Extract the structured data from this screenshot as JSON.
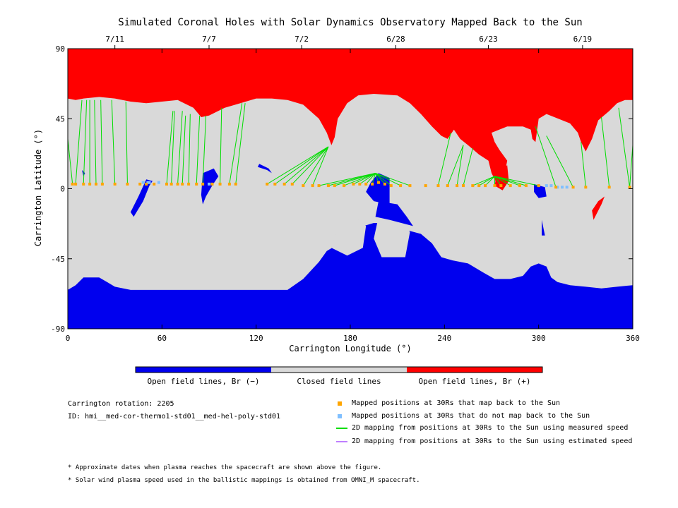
{
  "chart_data": {
    "type": "map",
    "title": "Simulated Coronal Holes with Solar Dynamics Observatory Mapped Back to the Sun",
    "xlabel": "Carrington Longitude (°)",
    "ylabel": "Carrington Latitude (°)",
    "xlim": [
      0,
      360
    ],
    "ylim": [
      -90,
      90
    ],
    "x_ticks": [
      "0",
      "60",
      "120",
      "180",
      "240",
      "300",
      "360"
    ],
    "y_ticks": [
      "90",
      "45",
      "0",
      "-45",
      "-90"
    ],
    "top_date_ticks": [
      {
        "lon": 30,
        "label": "7/11"
      },
      {
        "lon": 90,
        "label": "7/7"
      },
      {
        "lon": 149,
        "label": "7/2"
      },
      {
        "lon": 209,
        "label": "6/28"
      },
      {
        "lon": 268,
        "label": "6/23"
      },
      {
        "lon": 328,
        "label": "6/19"
      }
    ],
    "colors": {
      "closed": "#d9d9d9",
      "open_negative": "#0000ee",
      "open_positive": "#ff0000",
      "mapped_yes": "#ffa500",
      "mapped_no": "#7fbfff",
      "measured_speed_line": "#00dd00",
      "estimated_speed_line": "#bf7fff"
    },
    "north_hole_boundary": [
      [
        0,
        58
      ],
      [
        5,
        57
      ],
      [
        10,
        58
      ],
      [
        20,
        59
      ],
      [
        30,
        58
      ],
      [
        40,
        56
      ],
      [
        50,
        55
      ],
      [
        60,
        56
      ],
      [
        70,
        57
      ],
      [
        80,
        52
      ],
      [
        85,
        46
      ],
      [
        90,
        47
      ],
      [
        100,
        52
      ],
      [
        110,
        55
      ],
      [
        120,
        58
      ],
      [
        130,
        58
      ],
      [
        140,
        57
      ],
      [
        150,
        54
      ],
      [
        160,
        45
      ],
      [
        165,
        36
      ],
      [
        168,
        28
      ],
      [
        170,
        33
      ],
      [
        172,
        45
      ],
      [
        178,
        55
      ],
      [
        185,
        60
      ],
      [
        195,
        61
      ],
      [
        210,
        60
      ],
      [
        218,
        55
      ],
      [
        225,
        48
      ],
      [
        232,
        40
      ],
      [
        238,
        34
      ],
      [
        242,
        32
      ],
      [
        246,
        38
      ],
      [
        250,
        32
      ],
      [
        255,
        28
      ],
      [
        262,
        22
      ],
      [
        268,
        18
      ],
      [
        270,
        10
      ],
      [
        274,
        2
      ],
      [
        278,
        8
      ],
      [
        280,
        18
      ],
      [
        275,
        25
      ],
      [
        272,
        30
      ],
      [
        270,
        36
      ],
      [
        280,
        40
      ],
      [
        290,
        40
      ],
      [
        295,
        38
      ],
      [
        296,
        32
      ],
      [
        298,
        30
      ],
      [
        300,
        45
      ],
      [
        305,
        48
      ],
      [
        310,
        46
      ],
      [
        320,
        42
      ],
      [
        325,
        36
      ],
      [
        327,
        30
      ],
      [
        330,
        24
      ],
      [
        334,
        32
      ],
      [
        338,
        44
      ],
      [
        345,
        50
      ],
      [
        350,
        55
      ],
      [
        355,
        57
      ],
      [
        360,
        57
      ]
    ],
    "south_hole_boundary": [
      [
        0,
        -65
      ],
      [
        5,
        -62
      ],
      [
        10,
        -57
      ],
      [
        20,
        -57
      ],
      [
        25,
        -60
      ],
      [
        30,
        -63
      ],
      [
        40,
        -65
      ],
      [
        60,
        -65
      ],
      [
        100,
        -65
      ],
      [
        140,
        -65
      ],
      [
        150,
        -58
      ],
      [
        160,
        -47
      ],
      [
        165,
        -40
      ],
      [
        170,
        -37
      ],
      [
        178,
        -29
      ],
      [
        185,
        -25
      ],
      [
        195,
        -22
      ],
      [
        205,
        -22
      ],
      [
        210,
        -25
      ],
      [
        225,
        -29
      ],
      [
        232,
        -35
      ],
      [
        238,
        -44
      ],
      [
        245,
        -46
      ],
      [
        255,
        -48
      ],
      [
        265,
        -54
      ],
      [
        272,
        -58
      ],
      [
        282,
        -58
      ],
      [
        290,
        -56
      ],
      [
        295,
        -50
      ],
      [
        300,
        -48
      ],
      [
        305,
        -50
      ],
      [
        308,
        -57
      ],
      [
        312,
        -60
      ],
      [
        320,
        -62
      ],
      [
        330,
        -63
      ],
      [
        340,
        -64
      ],
      [
        350,
        -63
      ],
      [
        360,
        -62
      ]
    ],
    "south_inclusions": [
      [
        [
          171,
          -27
        ],
        [
          176,
          -18
        ],
        [
          184,
          -19
        ],
        [
          190,
          -24
        ],
        [
          188,
          -38
        ],
        [
          178,
          -43
        ],
        [
          168,
          -38
        ]
      ],
      [
        [
          195,
          -32
        ],
        [
          198,
          -18
        ],
        [
          206,
          -15
        ],
        [
          214,
          -18
        ],
        [
          218,
          -28
        ],
        [
          215,
          -44
        ],
        [
          200,
          -44
        ]
      ]
    ],
    "negative_polarity_islands": [
      [
        [
          198,
          10
        ],
        [
          205,
          7
        ],
        [
          205,
          -10
        ],
        [
          195,
          -8
        ],
        [
          190,
          -2
        ],
        [
          193,
          4
        ]
      ],
      [
        [
          198,
          -8
        ],
        [
          210,
          -10
        ],
        [
          216,
          -18
        ],
        [
          220,
          -24
        ],
        [
          205,
          -20
        ],
        [
          196,
          -18
        ]
      ],
      [
        [
          42,
          -18
        ],
        [
          48,
          -8
        ],
        [
          52,
          2
        ],
        [
          54,
          5
        ],
        [
          50,
          6
        ],
        [
          45,
          -5
        ],
        [
          40,
          -15
        ]
      ],
      [
        [
          86,
          10
        ],
        [
          93,
          13
        ],
        [
          96,
          8
        ],
        [
          92,
          2
        ],
        [
          88,
          -5
        ],
        [
          86,
          -10
        ],
        [
          85,
          -4
        ]
      ],
      [
        [
          121,
          14
        ],
        [
          127,
          12
        ],
        [
          130,
          10
        ],
        [
          128,
          13
        ],
        [
          122,
          16
        ]
      ],
      [
        [
          9,
          12
        ],
        [
          11,
          10
        ],
        [
          10,
          8
        ]
      ],
      [
        [
          297,
          3
        ],
        [
          304,
          1
        ],
        [
          305,
          -5
        ],
        [
          300,
          -6
        ],
        [
          297,
          -2
        ]
      ],
      [
        [
          302,
          -20
        ],
        [
          304,
          -30
        ],
        [
          302,
          -30
        ]
      ]
    ],
    "positive_polarity_islands": [
      [
        [
          275,
          13
        ],
        [
          280,
          15
        ],
        [
          281,
          5
        ],
        [
          277,
          -1
        ],
        [
          272,
          2
        ],
        [
          273,
          8
        ]
      ],
      [
        [
          335,
          -20
        ],
        [
          340,
          -10
        ],
        [
          342,
          -5
        ],
        [
          338,
          -8
        ],
        [
          334,
          -14
        ]
      ]
    ],
    "mapped_points": [
      [
        3,
        3
      ],
      [
        5,
        3
      ],
      [
        10,
        3
      ],
      [
        14,
        3
      ],
      [
        18,
        3
      ],
      [
        22,
        3
      ],
      [
        30,
        3
      ],
      [
        38,
        3
      ],
      [
        46,
        3
      ],
      [
        50,
        3
      ],
      [
        55,
        3
      ],
      [
        63,
        3
      ],
      [
        66,
        3
      ],
      [
        70,
        3
      ],
      [
        73,
        3
      ],
      [
        77,
        3
      ],
      [
        82,
        3
      ],
      [
        86,
        3
      ],
      [
        92,
        3
      ],
      [
        97,
        3
      ],
      [
        103,
        3
      ],
      [
        107,
        3
      ],
      [
        127,
        3
      ],
      [
        132,
        3
      ],
      [
        138,
        3
      ],
      [
        143,
        3
      ],
      [
        150,
        2
      ],
      [
        156,
        2
      ],
      [
        160,
        2
      ],
      [
        166,
        2
      ],
      [
        170,
        2
      ],
      [
        176,
        2
      ],
      [
        182,
        3
      ],
      [
        186,
        3
      ],
      [
        190,
        3
      ],
      [
        194,
        3
      ],
      [
        198,
        4
      ],
      [
        202,
        3
      ],
      [
        206,
        2
      ],
      [
        212,
        2
      ],
      [
        218,
        2
      ],
      [
        228,
        2
      ],
      [
        236,
        2
      ],
      [
        242,
        2
      ],
      [
        248,
        2
      ],
      [
        252,
        2
      ],
      [
        258,
        2
      ],
      [
        262,
        2
      ],
      [
        266,
        2
      ],
      [
        272,
        2
      ],
      [
        276,
        2
      ],
      [
        282,
        2
      ],
      [
        288,
        2
      ],
      [
        292,
        2
      ],
      [
        300,
        2
      ],
      [
        311,
        1
      ],
      [
        322,
        1
      ],
      [
        330,
        1
      ],
      [
        345,
        1
      ],
      [
        358,
        1
      ]
    ],
    "unmapped_points": [
      [
        48,
        4
      ],
      [
        51,
        4
      ],
      [
        52,
        4
      ],
      [
        58,
        4
      ],
      [
        90,
        3
      ],
      [
        300,
        2
      ],
      [
        305,
        2
      ],
      [
        308,
        2
      ],
      [
        312,
        1
      ],
      [
        315,
        1
      ],
      [
        318,
        1
      ]
    ],
    "measured_speed_lines": [
      [
        [
          3,
          3
        ],
        [
          0,
          32
        ]
      ],
      [
        [
          5,
          3
        ],
        [
          9,
          57
        ]
      ],
      [
        [
          10,
          3
        ],
        [
          12,
          57
        ]
      ],
      [
        [
          14,
          3
        ],
        [
          14,
          57
        ]
      ],
      [
        [
          18,
          3
        ],
        [
          17,
          57
        ]
      ],
      [
        [
          22,
          3
        ],
        [
          21,
          57
        ]
      ],
      [
        [
          30,
          3
        ],
        [
          28,
          57
        ]
      ],
      [
        [
          38,
          3
        ],
        [
          37,
          56
        ]
      ],
      [
        [
          63,
          3
        ],
        [
          67,
          50
        ]
      ],
      [
        [
          66,
          3
        ],
        [
          68,
          50
        ]
      ],
      [
        [
          70,
          3
        ],
        [
          73,
          50
        ]
      ],
      [
        [
          73,
          3
        ],
        [
          75,
          47
        ]
      ],
      [
        [
          77,
          3
        ],
        [
          78,
          48
        ]
      ],
      [
        [
          82,
          3
        ],
        [
          84,
          47
        ]
      ],
      [
        [
          86,
          3
        ],
        [
          88,
          47
        ]
      ],
      [
        [
          97,
          3
        ],
        [
          98,
          52
        ]
      ],
      [
        [
          103,
          3
        ],
        [
          111,
          55
        ]
      ],
      [
        [
          107,
          3
        ],
        [
          113,
          55
        ]
      ],
      [
        [
          127,
          3
        ],
        [
          166,
          27
        ]
      ],
      [
        [
          132,
          3
        ],
        [
          166,
          27
        ]
      ],
      [
        [
          138,
          3
        ],
        [
          166,
          27
        ]
      ],
      [
        [
          143,
          3
        ],
        [
          166,
          27
        ]
      ],
      [
        [
          150,
          2
        ],
        [
          166,
          27
        ]
      ],
      [
        [
          156,
          2
        ],
        [
          166,
          27
        ]
      ],
      [
        [
          160,
          2
        ],
        [
          196,
          10
        ]
      ],
      [
        [
          166,
          2
        ],
        [
          196,
          10
        ]
      ],
      [
        [
          170,
          2
        ],
        [
          196,
          10
        ]
      ],
      [
        [
          176,
          2
        ],
        [
          196,
          10
        ]
      ],
      [
        [
          182,
          3
        ],
        [
          196,
          10
        ]
      ],
      [
        [
          186,
          3
        ],
        [
          196,
          10
        ]
      ],
      [
        [
          190,
          3
        ],
        [
          196,
          10
        ]
      ],
      [
        [
          194,
          3
        ],
        [
          196,
          10
        ]
      ],
      [
        [
          198,
          4
        ],
        [
          196,
          10
        ]
      ],
      [
        [
          202,
          3
        ],
        [
          196,
          10
        ]
      ],
      [
        [
          206,
          2
        ],
        [
          196,
          10
        ]
      ],
      [
        [
          212,
          2
        ],
        [
          196,
          10
        ]
      ],
      [
        [
          218,
          2
        ],
        [
          196,
          10
        ]
      ],
      [
        [
          236,
          2
        ],
        [
          244,
          36
        ]
      ],
      [
        [
          242,
          2
        ],
        [
          252,
          28
        ]
      ],
      [
        [
          248,
          2
        ],
        [
          252,
          28
        ]
      ],
      [
        [
          252,
          2
        ],
        [
          258,
          26
        ]
      ],
      [
        [
          258,
          2
        ],
        [
          272,
          8
        ]
      ],
      [
        [
          262,
          2
        ],
        [
          272,
          8
        ]
      ],
      [
        [
          266,
          2
        ],
        [
          272,
          8
        ]
      ],
      [
        [
          272,
          2
        ],
        [
          272,
          8
        ]
      ],
      [
        [
          276,
          2
        ],
        [
          272,
          8
        ]
      ],
      [
        [
          282,
          2
        ],
        [
          272,
          8
        ]
      ],
      [
        [
          288,
          2
        ],
        [
          272,
          8
        ]
      ],
      [
        [
          292,
          2
        ],
        [
          272,
          8
        ]
      ],
      [
        [
          300,
          2
        ],
        [
          272,
          8
        ]
      ],
      [
        [
          311,
          1
        ],
        [
          298,
          40
        ]
      ],
      [
        [
          322,
          1
        ],
        [
          305,
          34
        ]
      ],
      [
        [
          330,
          1
        ],
        [
          327,
          30
        ]
      ],
      [
        [
          345,
          1
        ],
        [
          340,
          46
        ]
      ],
      [
        [
          358,
          1
        ],
        [
          351,
          52
        ]
      ],
      [
        [
          358,
          1
        ],
        [
          360,
          28
        ]
      ]
    ],
    "colorbar": {
      "segments": [
        {
          "label": "Open field lines, Br (−)",
          "color": "#0000ee"
        },
        {
          "label": "Closed field lines",
          "color": "#d9d9d9"
        },
        {
          "label": "Open field lines, Br (+)",
          "color": "#ff0000"
        }
      ]
    },
    "legend": [
      {
        "marker": "square",
        "color": "#ffa500",
        "label": "Mapped positions at 30Rs that map back to the Sun"
      },
      {
        "marker": "square",
        "color": "#7fbfff",
        "label": "Mapped positions at 30Rs that do not map back to the Sun"
      },
      {
        "marker": "line",
        "color": "#00dd00",
        "label": "2D mapping from positions at 30Rs to the Sun using measured speed"
      },
      {
        "marker": "line",
        "color": "#bf7fff",
        "label": "2D mapping from positions at 30Rs to the Sun using estimated speed"
      }
    ]
  },
  "info": {
    "rotation": "Carrington rotation: 2205",
    "id": "ID: hmi__med-cor-thermo1-std01__med-hel-poly-std01"
  },
  "footnotes": {
    "note1": "* Approximate dates when plasma reaches the spacecraft are shown above the figure.",
    "note2": "* Solar wind plasma speed used in the ballistic mappings is obtained from OMNI_M spacecraft."
  }
}
